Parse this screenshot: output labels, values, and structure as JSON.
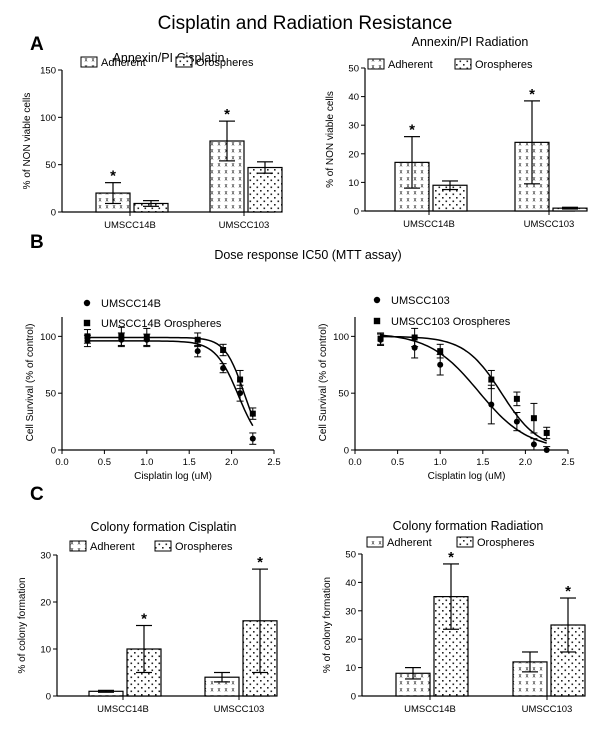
{
  "figure": {
    "title": "Cisplatin and Radiation Resistance",
    "panels": [
      {
        "letter": "A"
      },
      {
        "letter": "B",
        "title": "Dose response IC50 (MTT assay)"
      },
      {
        "letter": "C"
      }
    ]
  },
  "chart_data": [
    {
      "id": "A1",
      "type": "bar",
      "title": "Annexin/PI Cisplatin",
      "ylabel": "% of NON viable cells",
      "xlabel": "",
      "categories": [
        "UMSCC14B",
        "UMSCC103"
      ],
      "ylim": [
        0,
        150
      ],
      "yticks": [
        0,
        50,
        100,
        150
      ],
      "series": [
        {
          "name": "Adherent",
          "values": [
            20,
            75
          ],
          "errors": [
            11,
            21
          ],
          "significant": [
            true,
            true
          ]
        },
        {
          "name": "Orospheres",
          "values": [
            9,
            47
          ],
          "errors": [
            3,
            6
          ],
          "significant": [
            false,
            false
          ]
        }
      ]
    },
    {
      "id": "A2",
      "type": "bar",
      "title": "Annexin/PI Radiation",
      "ylabel": "% of NON viable cells",
      "xlabel": "",
      "categories": [
        "UMSCC14B",
        "UMSCC103"
      ],
      "ylim": [
        0,
        50
      ],
      "yticks": [
        0,
        10,
        20,
        30,
        40,
        50
      ],
      "series": [
        {
          "name": "Adherent",
          "values": [
            17,
            24
          ],
          "errors": [
            9,
            14.5
          ],
          "significant": [
            true,
            true
          ]
        },
        {
          "name": "Orospheres",
          "values": [
            9,
            1
          ],
          "errors": [
            1.5,
            0.3
          ],
          "significant": [
            false,
            false
          ]
        }
      ]
    },
    {
      "id": "B1",
      "type": "line",
      "title": "",
      "xlabel": "Cisplatin log (uM)",
      "ylabel": "Cell Survival (% of control)",
      "xlim": [
        0,
        2.5
      ],
      "ylim": [
        0,
        110
      ],
      "xticks": [
        "0.0",
        "0.5",
        "1.0",
        "1.5",
        "2.0",
        "2.5"
      ],
      "yticks": [
        0,
        50,
        100
      ],
      "series": [
        {
          "name": "UMSCC14B",
          "marker": "circle",
          "x": [
            0.3,
            0.7,
            1.0,
            1.6,
            1.9,
            2.1,
            2.25
          ],
          "y": [
            96,
            97,
            97,
            87,
            72,
            50,
            10
          ],
          "errors": [
            5,
            6,
            5,
            5,
            4,
            7,
            5
          ],
          "fit": {
            "top": 96,
            "bottom": 0,
            "logIC50": 2.08,
            "hill": -3.2
          }
        },
        {
          "name": "UMSCC14B Orospheres",
          "marker": "square",
          "x": [
            0.3,
            0.7,
            1.0,
            1.6,
            1.9,
            2.1,
            2.25
          ],
          "y": [
            100,
            100,
            99,
            97,
            88,
            62,
            32
          ],
          "errors": [
            6,
            8,
            8,
            6,
            5,
            8,
            5
          ],
          "fit": {
            "top": 99,
            "bottom": 0,
            "logIC50": 2.15,
            "hill": -3.8
          }
        }
      ]
    },
    {
      "id": "B2",
      "type": "line",
      "title": "",
      "xlabel": "Cisplatin log (uM)",
      "ylabel": "Cell Survival (% of control)",
      "xlim": [
        0,
        2.5
      ],
      "ylim": [
        0,
        110
      ],
      "xticks": [
        "0.0",
        "0.5",
        "1.0",
        "1.5",
        "2.0",
        "2.5"
      ],
      "yticks": [
        0,
        50,
        100
      ],
      "series": [
        {
          "name": "UMSCC103",
          "marker": "circle",
          "x": [
            0.3,
            0.7,
            1.0,
            1.6,
            1.9,
            2.1,
            2.25
          ],
          "y": [
            97,
            90,
            75,
            40,
            25,
            5,
            0
          ],
          "errors": [
            5,
            9,
            9,
            17,
            8,
            5,
            3
          ],
          "fit": {
            "top": 103,
            "bottom": 0,
            "logIC50": 1.45,
            "hill": -1.5
          }
        },
        {
          "name": "UMSCC103 Orospheres",
          "marker": "square",
          "x": [
            0.3,
            0.7,
            1.0,
            1.6,
            1.9,
            2.1,
            2.25
          ],
          "y": [
            98,
            99,
            87,
            62,
            45,
            28,
            15
          ],
          "errors": [
            5,
            8,
            6,
            8,
            6,
            13,
            5
          ],
          "fit": {
            "top": 100,
            "bottom": 0,
            "logIC50": 1.72,
            "hill": -2.0
          }
        }
      ]
    },
    {
      "id": "C1",
      "type": "bar",
      "title": "Colony formation Cisplatin",
      "ylabel": "% of colony formation",
      "xlabel": "",
      "categories": [
        "UMSCC14B",
        "UMSCC103"
      ],
      "ylim": [
        0,
        30
      ],
      "yticks": [
        0,
        10,
        20,
        30
      ],
      "series": [
        {
          "name": "Adherent",
          "values": [
            1,
            4
          ],
          "errors": [
            0.2,
            1
          ],
          "significant": [
            false,
            false
          ]
        },
        {
          "name": "Orospheres",
          "values": [
            10,
            16
          ],
          "errors": [
            5,
            11
          ],
          "significant": [
            true,
            true
          ]
        }
      ]
    },
    {
      "id": "C2",
      "type": "bar",
      "title": "Colony formation Radiation",
      "ylabel": "% of colony formation",
      "xlabel": "",
      "categories": [
        "UMSCC14B",
        "UMSCC103"
      ],
      "ylim": [
        0,
        50
      ],
      "yticks": [
        0,
        10,
        20,
        30,
        40,
        50
      ],
      "series": [
        {
          "name": "Adherent",
          "values": [
            8,
            12
          ],
          "errors": [
            2,
            3.5
          ],
          "significant": [
            false,
            false
          ]
        },
        {
          "name": "Orospheres",
          "values": [
            35,
            25
          ],
          "errors": [
            11.5,
            9.5
          ],
          "significant": [
            true,
            true
          ]
        }
      ]
    }
  ]
}
